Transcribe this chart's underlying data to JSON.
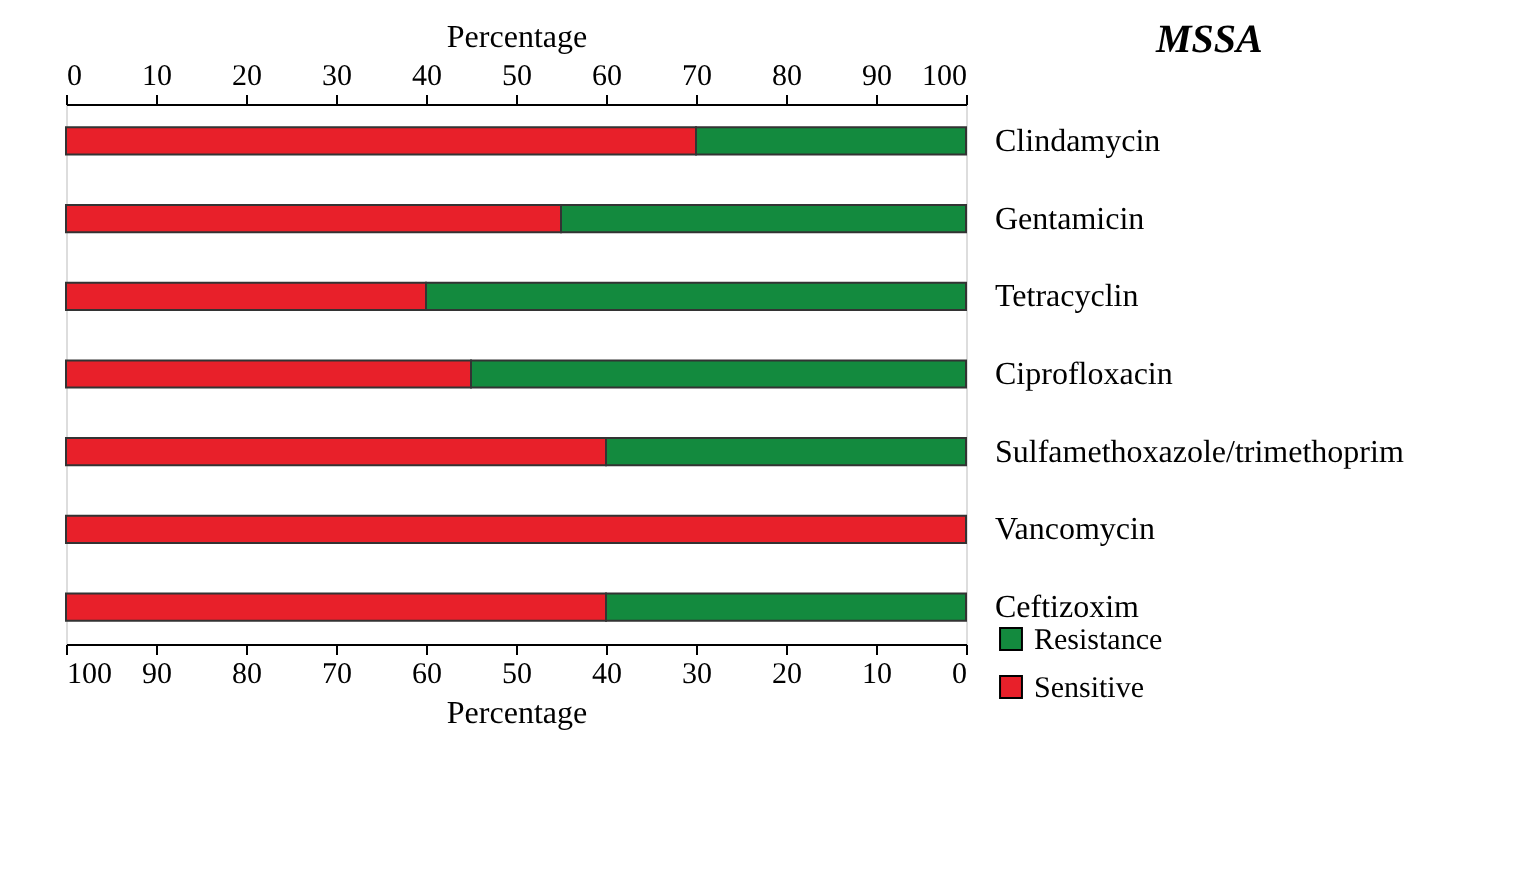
{
  "chart_data": {
    "type": "bar",
    "orientation": "horizontal",
    "stacked": true,
    "title": "MSSA",
    "categories": [
      "Clindamycin",
      "Gentamicin",
      "Tetracyclin",
      "Ciprofloxacin",
      "Sulfamethoxazole/trimethoprim",
      "Vancomycin",
      "Ceftizoxim"
    ],
    "series": [
      {
        "name": "Resistance",
        "color": "#138a3e",
        "values": [
          30,
          45,
          60,
          55,
          40,
          0,
          40
        ]
      },
      {
        "name": "Sensitive",
        "color": "#e8202a",
        "values": [
          70,
          55,
          40,
          45,
          60,
          100,
          60
        ]
      }
    ],
    "xlabel": "Percentage",
    "xlim": [
      100,
      0
    ],
    "xticks": [
      100,
      90,
      80,
      70,
      60,
      50,
      40,
      30,
      20,
      10,
      0
    ],
    "x2label": "Percentage",
    "x2lim": [
      0,
      100
    ],
    "x2ticks": [
      0,
      10,
      20,
      30,
      40,
      50,
      60,
      70,
      80,
      90,
      100
    ],
    "grid": false,
    "legend": "bottom right"
  }
}
